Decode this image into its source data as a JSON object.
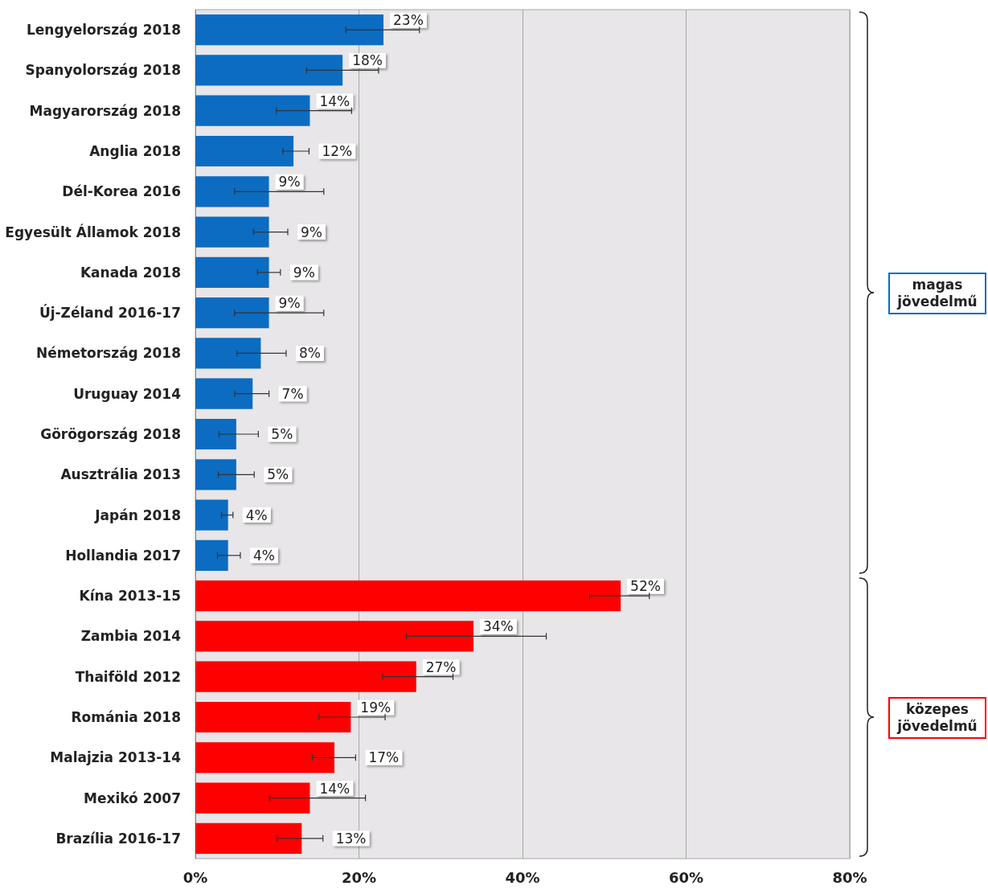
{
  "chart_data": {
    "type": "bar",
    "orientation": "horizontal",
    "categories": [
      "Lengyelország 2018",
      "Spanyolország 2018",
      "Magyarország 2018",
      "Anglia 2018",
      "Dél-Korea 2016",
      "Egyesült Államok 2018",
      "Kanada 2018",
      "Új-Zéland 2016-17",
      "Németország 2018",
      "Uruguay 2014",
      "Görögország 2018",
      "Ausztrália 2013",
      "Japán 2018",
      "Hollandia 2017",
      "Kína 2013-15",
      "Zambia 2014",
      "Thaiföld 2012",
      "Románia 2018",
      "Malajzia 2013-14",
      "Mexikó 2007",
      "Brazília 2016-17"
    ],
    "series": [
      {
        "color": "#0b6cc2",
        "values": [
          23,
          18,
          14,
          12,
          9,
          9,
          9,
          9,
          8,
          7,
          5,
          5,
          4,
          4,
          null,
          null,
          null,
          null,
          null,
          null,
          null
        ],
        "errors": [
          [
            18.4,
            27.4
          ],
          [
            13.6,
            22.4
          ],
          [
            9.9,
            19.1
          ],
          [
            10.7,
            13.9
          ],
          [
            4.8,
            15.7
          ],
          [
            7.1,
            11.3
          ],
          [
            7.6,
            10.4
          ],
          [
            4.8,
            15.7
          ],
          [
            5.1,
            11.1
          ],
          [
            4.8,
            9.0
          ],
          [
            2.9,
            7.7
          ],
          [
            2.8,
            7.2
          ],
          [
            3.2,
            4.6
          ],
          [
            2.7,
            5.5
          ],
          null,
          null,
          null,
          null,
          null,
          null,
          null
        ],
        "value_labels": [
          "23%",
          "18%",
          "14%",
          "12%",
          "9%",
          "9%",
          "9%",
          "9%",
          "8%",
          "7%",
          "5%",
          "5%",
          "4%",
          "4%",
          null,
          null,
          null,
          null,
          null,
          null,
          null
        ]
      },
      {
        "color": "#ff0000",
        "values": [
          null,
          null,
          null,
          null,
          null,
          null,
          null,
          null,
          null,
          null,
          null,
          null,
          null,
          null,
          52,
          34,
          27,
          19,
          17,
          14,
          13
        ],
        "errors": [
          null,
          null,
          null,
          null,
          null,
          null,
          null,
          null,
          null,
          null,
          null,
          null,
          null,
          null,
          [
            48.2,
            55.5
          ],
          [
            25.8,
            42.9
          ],
          [
            22.9,
            31.5
          ],
          [
            15.1,
            23.2
          ],
          [
            14.3,
            19.6
          ],
          [
            9.1,
            20.8
          ],
          [
            10.0,
            15.6
          ]
        ],
        "value_labels": [
          null,
          null,
          null,
          null,
          null,
          null,
          null,
          null,
          null,
          null,
          null,
          null,
          null,
          null,
          "52%",
          "34%",
          "27%",
          "19%",
          "17%",
          "14%",
          "13%"
        ]
      }
    ],
    "xlim": [
      0,
      80
    ],
    "xticks": [
      {
        "value": 0,
        "label": "0%"
      },
      {
        "value": 20,
        "label": "20%"
      },
      {
        "value": 40,
        "label": "40%"
      },
      {
        "value": 60,
        "label": "60%"
      },
      {
        "value": 80,
        "label": "80%"
      }
    ],
    "grid": "x",
    "annotations": [
      "magas jövedelmű",
      "közepes jövedelmű"
    ]
  }
}
